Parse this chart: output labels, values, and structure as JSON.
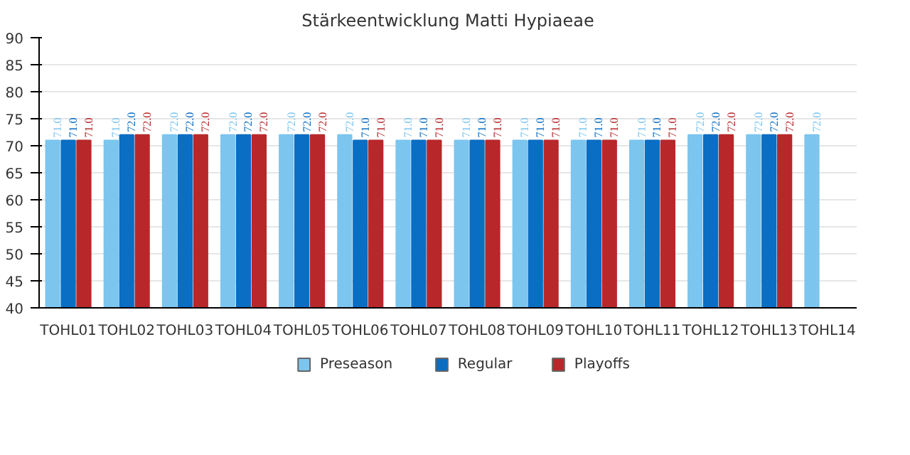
{
  "chart_data": {
    "type": "bar",
    "title": "Stärkeentwicklung Matti Hypiaeae",
    "categories": [
      "TOHL01",
      "TOHL02",
      "TOHL03",
      "TOHL04",
      "TOHL05",
      "TOHL06",
      "TOHL07",
      "TOHL08",
      "TOHL09",
      "TOHL10",
      "TOHL11",
      "TOHL12",
      "TOHL13",
      "TOHL14"
    ],
    "series": [
      {
        "name": "Preseason",
        "color": "#7cc5ee",
        "values": [
          71,
          71,
          72,
          72,
          72,
          72,
          71,
          71,
          71,
          71,
          71,
          72,
          72,
          72
        ],
        "value_labels": [
          "71.0",
          "71.0",
          "72.0",
          "72.0",
          "72.0",
          "72.0",
          "71.0",
          "71.0",
          "71.0",
          "71.0",
          "71.0",
          "72.0",
          "72.0",
          "72.0"
        ]
      },
      {
        "name": "Regular",
        "color": "#0a6ec4",
        "values": [
          71,
          72,
          72,
          72,
          72,
          71,
          71,
          71,
          71,
          71,
          71,
          72,
          72,
          null
        ],
        "value_labels": [
          "71.0",
          "72.0",
          "72.0",
          "72.0",
          "72.0",
          "71.0",
          "71.0",
          "71.0",
          "71.0",
          "71.0",
          "71.0",
          "72.0",
          "72.0",
          null
        ]
      },
      {
        "name": "Playoffs",
        "color": "#b8282b",
        "values": [
          71,
          72,
          72,
          72,
          72,
          71,
          71,
          71,
          71,
          71,
          71,
          72,
          72,
          null
        ],
        "value_labels": [
          "71.0",
          "72.0",
          "72.0",
          "72.0",
          "72.0",
          "71.0",
          "71.0",
          "71.0",
          "71.0",
          "71.0",
          "71.0",
          "72.0",
          "72.0",
          null
        ]
      }
    ],
    "ylim": [
      40,
      90
    ],
    "yticks": [
      40,
      45,
      50,
      55,
      60,
      65,
      70,
      75,
      80,
      85,
      90
    ],
    "grid": "y",
    "legend": "bottom"
  }
}
